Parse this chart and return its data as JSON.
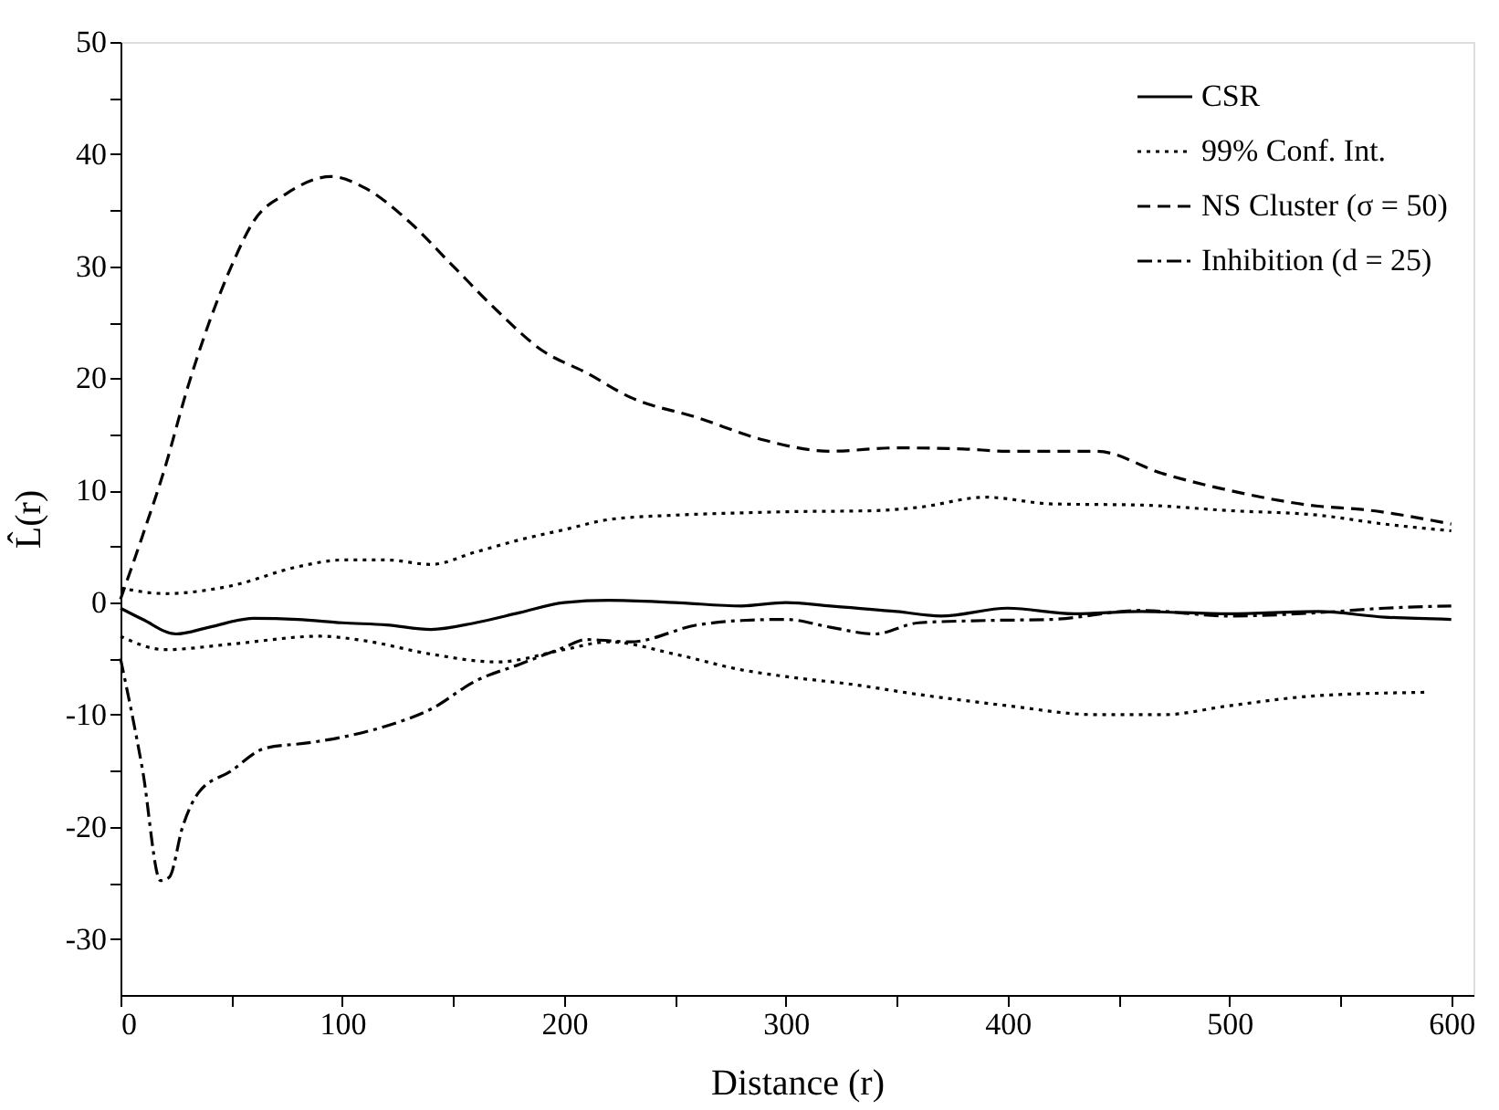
{
  "chart_data": {
    "type": "line",
    "xlabel": "Distance (r)",
    "ylabel": "L̂(r)",
    "xlim": [
      0,
      610
    ],
    "xticks": [
      0,
      {
        "value": 50,
        "label": null
      },
      100,
      {
        "value": 150,
        "label": null
      },
      200,
      {
        "value": 250,
        "label": null
      },
      300,
      {
        "value": 350,
        "label": null
      },
      400,
      {
        "value": 450,
        "label": null
      },
      500,
      {
        "value": 550,
        "label": null
      },
      600
    ],
    "ylim": [
      -35,
      50
    ],
    "yticks": [
      -30,
      {
        "value": -25,
        "label": null
      },
      -20,
      {
        "value": -15,
        "label": null
      },
      -10,
      {
        "value": -5,
        "label": null
      },
      0,
      {
        "value": 5,
        "label": null
      },
      10,
      {
        "value": 15,
        "label": null
      },
      20,
      {
        "value": 25,
        "label": null
      },
      30,
      {
        "value": 35,
        "label": null
      },
      40,
      {
        "value": 45,
        "label": null
      },
      50
    ],
    "grid": false,
    "legend": "top right",
    "marker": "none",
    "series": [
      {
        "name": "CSR",
        "color": "#000000",
        "line_style": "solid",
        "x": [
          0,
          10,
          25,
          40,
          60,
          80,
          100,
          120,
          140,
          160,
          180,
          200,
          220,
          250,
          280,
          300,
          320,
          350,
          370,
          400,
          430,
          460,
          500,
          540,
          570,
          600
        ],
        "values": [
          -0.5,
          -1.5,
          -2.8,
          -2.2,
          -1.4,
          -1.5,
          -1.8,
          -2.0,
          -2.4,
          -1.8,
          -0.9,
          0,
          0.2,
          0,
          -0.3,
          0,
          -0.3,
          -0.8,
          -1.2,
          -0.5,
          -1.0,
          -0.8,
          -1.0,
          -0.8,
          -1.3,
          -1.5
        ]
      },
      {
        "name": "99% Conf. Int.",
        "color": "#000000",
        "line_style": "dotted",
        "x": [
          0,
          20,
          50,
          80,
          100,
          120,
          140,
          160,
          180,
          200,
          220,
          250,
          280,
          300,
          340,
          360,
          390,
          420,
          460,
          500,
          540,
          570,
          600
        ],
        "values": [
          1.3,
          0.8,
          1.5,
          3.2,
          3.8,
          3.8,
          3.4,
          4.5,
          5.6,
          6.5,
          7.4,
          7.8,
          8.0,
          8.1,
          8.2,
          8.5,
          9.4,
          8.8,
          8.7,
          8.2,
          7.8,
          7.0,
          6.4
        ]
      },
      {
        "color": "#000000",
        "line_style": "dotted",
        "x": [
          0,
          20,
          50,
          90,
          110,
          140,
          170,
          200,
          220,
          250,
          280,
          300,
          330,
          360,
          400,
          440,
          470,
          500,
          540,
          590
        ],
        "values": [
          -3,
          -4.2,
          -3.7,
          -3.0,
          -3.4,
          -4.6,
          -5.3,
          -4.2,
          -3.5,
          -4.6,
          -6.0,
          -6.6,
          -7.3,
          -8.2,
          -9.2,
          -10.0,
          -10.0,
          -9.2,
          -8.3,
          -8.0
        ]
      },
      {
        "name": "NS Cluster (σ = 50)",
        "color": "#000000",
        "line_style": "dashed",
        "x": [
          0,
          10,
          20,
          30,
          40,
          50,
          60,
          75,
          95,
          110,
          130,
          150,
          170,
          190,
          210,
          230,
          260,
          290,
          320,
          350,
          380,
          400,
          440,
          470,
          500,
          540,
          560,
          600
        ],
        "values": [
          0.3,
          6,
          12,
          19,
          25,
          30,
          34,
          36.5,
          38,
          37,
          34,
          30,
          26,
          22.5,
          20.5,
          18.3,
          16.5,
          14.5,
          13.5,
          13.8,
          13.7,
          13.5,
          13.5,
          11.5,
          10,
          8.6,
          8.3,
          7.0
        ]
      },
      {
        "name": "Inhibition (d = 25)",
        "color": "#000000",
        "line_style": "dashdot",
        "x": [
          0,
          10,
          18,
          22,
          28,
          35,
          50,
          65,
          85,
          100,
          120,
          140,
          160,
          180,
          200,
          210,
          230,
          260,
          280,
          300,
          320,
          340,
          360,
          390,
          420,
          460,
          500,
          540,
          570,
          600
        ],
        "values": [
          -5,
          -15,
          -24.8,
          -24.5,
          -20,
          -17,
          -15,
          -13,
          -12.5,
          -12,
          -11,
          -9.5,
          -7,
          -5.5,
          -4,
          -3.3,
          -3.5,
          -2,
          -1.6,
          -1.5,
          -2.2,
          -2.8,
          -1.8,
          -1.6,
          -1.5,
          -0.7,
          -1.2,
          -0.9,
          -0.5,
          -0.3
        ]
      }
    ]
  }
}
